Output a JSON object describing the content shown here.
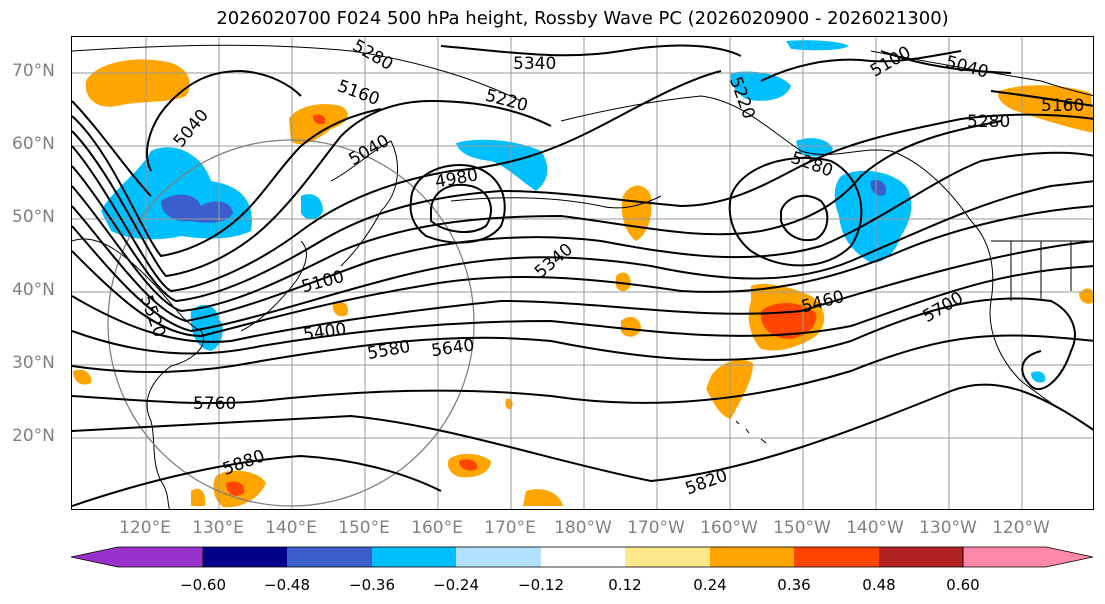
{
  "title": "2026020700 F024 500 hPa height, Rossby Wave PC (2026020900 - 2026021300)",
  "lat_labels": [
    "70°N",
    "60°N",
    "50°N",
    "40°N",
    "30°N",
    "20°N"
  ],
  "lon_labels": [
    "120°E",
    "130°E",
    "140°E",
    "150°E",
    "160°E",
    "170°E",
    "180°W",
    "170°W",
    "160°W",
    "150°W",
    "140°W",
    "130°W",
    "120°W"
  ],
  "contour_labels": [
    "5280",
    "5340",
    "5100",
    "5040",
    "5160",
    "5220",
    "5220",
    "5040",
    "5160",
    "5040",
    "4980",
    "5280",
    "5280",
    "5340",
    "5100",
    "5520",
    "5400",
    "5580",
    "5640",
    "5460",
    "5700",
    "5760",
    "5880",
    "5820"
  ],
  "colorbar": {
    "ticks": [
      "−0.60",
      "−0.48",
      "−0.36",
      "−0.24",
      "−0.12",
      "0.12",
      "0.24",
      "0.36",
      "0.48",
      "0.60"
    ],
    "colors": [
      "#9932cc",
      "#00008b",
      "#3a5fcd",
      "#00bfff",
      "#b0e2ff",
      "#ffffff",
      "#ffe88a",
      "#ffa500",
      "#ff4500",
      "#b22222",
      "#ff88aa"
    ]
  }
}
